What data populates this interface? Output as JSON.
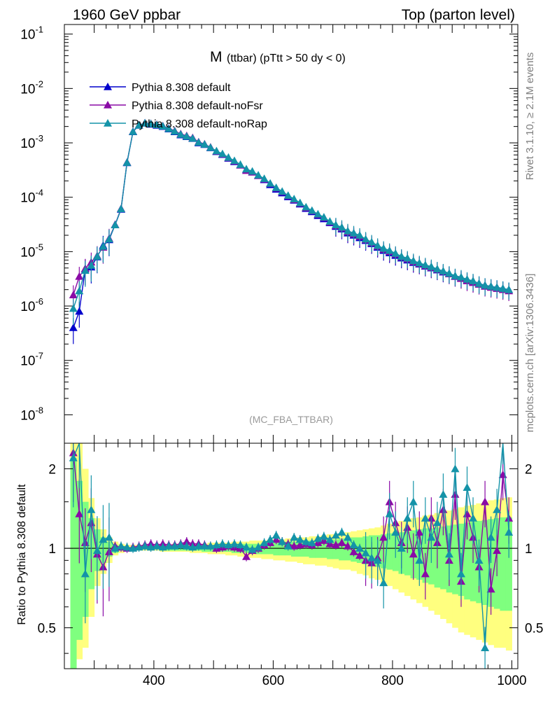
{
  "header": {
    "left": "1960 GeV ppbar",
    "right": "Top (parton level)"
  },
  "title": {
    "main": "M",
    "sub": "(ttbar) (pTtt > 50 dy < 0)"
  },
  "side_labels": {
    "rivet": "Rivet 3.1.10, ≥ 2.1M events",
    "mcplots": "mcplots.cern.ch [arXiv:1306.3436]"
  },
  "watermark": "(MC_FBA_TTBAR)",
  "colors": {
    "default": "#0000cc",
    "noFsr": "#8a0aa6",
    "noRap": "#1493a8",
    "band_yellow": "#ffff7f",
    "band_green": "#7fff7f"
  },
  "chart_data": [
    {
      "type": "line",
      "xlim": [
        250,
        1010
      ],
      "ylim": [
        3e-09,
        0.15
      ],
      "yscale": "log",
      "ytick_labels": [
        "10^-8",
        "10^-7",
        "10^-6",
        "10^-5",
        "10^-4",
        "10^-3",
        "10^-2",
        "10^-1"
      ],
      "legend_position": "top-left",
      "x": [
        265,
        275,
        285,
        295,
        305,
        315,
        325,
        335,
        345,
        355,
        365,
        375,
        385,
        395,
        405,
        415,
        425,
        435,
        445,
        455,
        465,
        475,
        485,
        495,
        505,
        515,
        525,
        535,
        545,
        555,
        565,
        575,
        585,
        595,
        605,
        615,
        625,
        635,
        645,
        655,
        665,
        675,
        685,
        695,
        705,
        715,
        725,
        735,
        745,
        755,
        765,
        775,
        785,
        795,
        805,
        815,
        825,
        835,
        845,
        855,
        865,
        875,
        885,
        895,
        905,
        915,
        925,
        935,
        945,
        955,
        965,
        975,
        985,
        995
      ],
      "series": [
        {
          "name": "Pythia 8.308 default",
          "values": [
            4e-07,
            8e-07,
            4.8e-06,
            5.2e-06,
            8e-06,
            1.3e-05,
            1.65e-05,
            3.1e-05,
            6e-05,
            0.00043,
            0.0016,
            0.0021,
            0.0023,
            0.0022,
            0.0021,
            0.002,
            0.0018,
            0.0016,
            0.0014,
            0.0013,
            0.0012,
            0.001,
            0.00093,
            0.00081,
            0.00069,
            0.00061,
            0.00052,
            0.00045,
            0.00039,
            0.00032,
            0.00029,
            0.00025,
            0.00021,
            0.00017,
            0.00014,
            0.00012,
            0.000102,
            8.8e-05,
            7.5e-05,
            6.2e-05,
            5.4e-05,
            4.6e-05,
            4e-05,
            3.4e-05,
            2.9e-05,
            2.6e-05,
            2.2e-05,
            2e-05,
            1.8e-05,
            1.6e-05,
            1.4e-05,
            1.2e-05,
            1.05e-05,
            9.5e-06,
            8.5e-06,
            7.6e-06,
            7e-06,
            6.3e-06,
            5.9e-06,
            5.4e-06,
            5e-06,
            4.6e-06,
            4.2e-06,
            3.9e-06,
            3.5e-06,
            3.3e-06,
            3e-06,
            2.8e-06,
            2.6e-06,
            2.4e-06,
            2.3e-06,
            2.2e-06,
            2.1e-06,
            2e-06
          ]
        },
        {
          "name": "Pythia 8.308 default-noFsr",
          "values": [
            1.6e-06,
            3.5e-06,
            4.9e-06,
            6.4e-06,
            8.4e-06,
            1.2e-05,
            1.75e-05,
            3.15e-05,
            6.2e-05,
            0.00044,
            0.00162,
            0.00212,
            0.00232,
            0.00226,
            0.00217,
            0.00205,
            0.00186,
            0.00166,
            0.00146,
            0.00135,
            0.00124,
            0.00104,
            0.00095,
            0.00083,
            0.0007,
            0.00062,
            0.00053,
            0.00046,
            0.00039,
            0.00031,
            0.00029,
            0.00025,
            0.000215,
            0.000178,
            0.000147,
            0.000126,
            0.000106,
            9e-05,
            7.7e-05,
            6.4e-05,
            5.6e-05,
            4.8e-05,
            4.2e-05,
            3.5e-05,
            3e-05,
            2.7e-05,
            2.3e-05,
            2.1e-05,
            1.9e-05,
            1.65e-05,
            1.45e-05,
            1.25e-05,
            1.1e-05,
            1e-05,
            9e-06,
            8e-06,
            7.3e-06,
            6.5e-06,
            6e-06,
            5.5e-06,
            5.1e-06,
            4.7e-06,
            4.3e-06,
            3.9e-06,
            3.5e-06,
            3.2e-06,
            2.9e-06,
            2.7e-06,
            2.5e-06,
            2.3e-06,
            2.2e-06,
            2.1e-06,
            2e-06,
            1.9e-06
          ]
        },
        {
          "name": "Pythia 8.308 default-noRap",
          "values": [
            9e-07,
            1.9e-06,
            4.5e-06,
            5.6e-06,
            8.2e-06,
            1.25e-05,
            1.7e-05,
            3.1e-05,
            6.1e-05,
            0.000435,
            0.00161,
            0.00211,
            0.00231,
            0.00225,
            0.00215,
            0.00203,
            0.00183,
            0.00163,
            0.00143,
            0.00132,
            0.00121,
            0.00102,
            0.00094,
            0.00082,
            0.00071,
            0.00063,
            0.00054,
            0.00047,
            0.0004,
            0.00033,
            0.0003,
            0.000255,
            0.00022,
            0.00018,
            0.00015,
            0.000128,
            0.000108,
            9.3e-05,
            7.9e-05,
            6.6e-05,
            5.7e-05,
            4.9e-05,
            4.3e-05,
            3.6e-05,
            3.1e-05,
            2.8e-05,
            2.4e-05,
            2.2e-05,
            2e-05,
            1.7e-05,
            1.5e-05,
            1.3e-05,
            1.15e-05,
            1.05e-05,
            9.3e-06,
            8.2e-06,
            7.6e-06,
            6.8e-06,
            6.2e-06,
            5.7e-06,
            5.3e-06,
            4.8e-06,
            4.4e-06,
            4e-06,
            3.6e-06,
            3.4e-06,
            3.1e-06,
            2.9e-06,
            2.6e-06,
            2.4e-06,
            2.3e-06,
            2.2e-06,
            2.1e-06,
            2e-06
          ]
        }
      ]
    },
    {
      "type": "line",
      "ylabel": "Ratio to Pythia 8.308 default",
      "xlim": [
        250,
        1010
      ],
      "ylim": [
        0.35,
        2.5
      ],
      "yscale": "log",
      "xtick_labels": [
        "400",
        "600",
        "800",
        "1000"
      ],
      "ytick_labels": [
        "0.5",
        "1",
        "2"
      ],
      "x": [
        265,
        275,
        285,
        295,
        305,
        315,
        325,
        335,
        345,
        355,
        365,
        375,
        385,
        395,
        405,
        415,
        425,
        435,
        445,
        455,
        465,
        475,
        485,
        495,
        505,
        515,
        525,
        535,
        545,
        555,
        565,
        575,
        585,
        595,
        605,
        615,
        625,
        635,
        645,
        655,
        665,
        675,
        685,
        695,
        705,
        715,
        725,
        735,
        745,
        755,
        765,
        775,
        785,
        795,
        805,
        815,
        825,
        835,
        845,
        855,
        865,
        875,
        885,
        895,
        905,
        915,
        925,
        935,
        945,
        955,
        965,
        975,
        985,
        995
      ],
      "band_yellow": {
        "lo": [
          0.3,
          0.38,
          0.42,
          0.55,
          0.72,
          0.8,
          0.88,
          0.94,
          0.96,
          0.98,
          0.98,
          0.98,
          0.98,
          0.98,
          0.98,
          0.97,
          0.97,
          0.97,
          0.97,
          0.97,
          0.96,
          0.96,
          0.96,
          0.95,
          0.95,
          0.95,
          0.94,
          0.94,
          0.93,
          0.93,
          0.92,
          0.92,
          0.91,
          0.91,
          0.9,
          0.9,
          0.89,
          0.89,
          0.88,
          0.87,
          0.87,
          0.86,
          0.86,
          0.85,
          0.84,
          0.83,
          0.83,
          0.82,
          0.8,
          0.79,
          0.77,
          0.76,
          0.74,
          0.72,
          0.7,
          0.68,
          0.66,
          0.64,
          0.62,
          0.6,
          0.58,
          0.56,
          0.54,
          0.52,
          0.5,
          0.48,
          0.47,
          0.46,
          0.45,
          0.44,
          0.43,
          0.42,
          0.42,
          0.41
        ],
        "hi": [
          2.5,
          2.5,
          2.0,
          1.55,
          1.3,
          1.18,
          1.1,
          1.06,
          1.04,
          1.03,
          1.03,
          1.03,
          1.03,
          1.03,
          1.03,
          1.03,
          1.03,
          1.04,
          1.04,
          1.04,
          1.04,
          1.04,
          1.04,
          1.05,
          1.05,
          1.05,
          1.05,
          1.06,
          1.06,
          1.06,
          1.07,
          1.07,
          1.07,
          1.08,
          1.08,
          1.08,
          1.09,
          1.09,
          1.1,
          1.1,
          1.11,
          1.11,
          1.12,
          1.13,
          1.13,
          1.14,
          1.15,
          1.16,
          1.17,
          1.18,
          1.19,
          1.2,
          1.22,
          1.24,
          1.25,
          1.27,
          1.28,
          1.3,
          1.31,
          1.33,
          1.34,
          1.36,
          1.38,
          1.39,
          1.41,
          1.43,
          1.45,
          1.46,
          1.48,
          1.5,
          1.52,
          1.53,
          1.55,
          1.56
        ]
      },
      "band_green": {
        "lo": [
          0.35,
          0.45,
          0.55,
          0.7,
          0.82,
          0.88,
          0.93,
          0.96,
          0.98,
          0.99,
          0.99,
          0.99,
          0.99,
          0.99,
          0.99,
          0.98,
          0.98,
          0.98,
          0.98,
          0.98,
          0.98,
          0.98,
          0.97,
          0.97,
          0.97,
          0.97,
          0.97,
          0.96,
          0.96,
          0.96,
          0.96,
          0.95,
          0.95,
          0.95,
          0.94,
          0.94,
          0.94,
          0.93,
          0.93,
          0.93,
          0.92,
          0.92,
          0.92,
          0.91,
          0.91,
          0.9,
          0.9,
          0.89,
          0.88,
          0.87,
          0.86,
          0.85,
          0.84,
          0.83,
          0.82,
          0.8,
          0.79,
          0.77,
          0.76,
          0.74,
          0.73,
          0.71,
          0.7,
          0.68,
          0.67,
          0.66,
          0.64,
          0.63,
          0.62,
          0.61,
          0.6,
          0.59,
          0.58,
          0.58
        ],
        "hi": [
          2.2,
          1.8,
          1.5,
          1.3,
          1.18,
          1.1,
          1.06,
          1.03,
          1.02,
          1.01,
          1.01,
          1.01,
          1.01,
          1.01,
          1.01,
          1.02,
          1.02,
          1.02,
          1.02,
          1.02,
          1.02,
          1.02,
          1.03,
          1.03,
          1.03,
          1.03,
          1.03,
          1.04,
          1.04,
          1.04,
          1.04,
          1.04,
          1.05,
          1.05,
          1.05,
          1.05,
          1.06,
          1.06,
          1.06,
          1.07,
          1.07,
          1.07,
          1.08,
          1.08,
          1.08,
          1.09,
          1.09,
          1.1,
          1.1,
          1.11,
          1.12,
          1.12,
          1.13,
          1.14,
          1.15,
          1.15,
          1.16,
          1.17,
          1.18,
          1.19,
          1.19,
          1.2,
          1.21,
          1.22,
          1.23,
          1.24,
          1.25,
          1.26,
          1.27,
          1.28,
          1.29,
          1.3,
          1.31,
          1.31
        ]
      },
      "series": [
        {
          "name": "Pythia 8.308 default",
          "values": [
            1,
            1,
            1,
            1,
            1,
            1,
            1,
            1,
            1,
            1,
            1,
            1,
            1,
            1,
            1,
            1,
            1,
            1,
            1,
            1,
            1,
            1,
            1,
            1,
            1,
            1,
            1,
            1,
            1,
            1,
            1,
            1,
            1,
            1,
            1,
            1,
            1,
            1,
            1,
            1,
            1,
            1,
            1,
            1,
            1,
            1,
            1,
            1,
            1,
            1,
            1,
            1,
            1,
            1,
            1,
            1,
            1,
            1,
            1,
            1,
            1,
            1,
            1,
            1,
            1,
            1,
            1,
            1,
            1,
            1,
            1,
            1,
            1,
            1
          ]
        },
        {
          "name": "Pythia 8.308 default-noFsr",
          "values": [
            2.3,
            1.35,
            1.05,
            1.25,
            0.95,
            0.85,
            0.97,
            1.02,
            1.01,
            1.0,
            1.01,
            1.02,
            1.03,
            1.04,
            1.03,
            1.04,
            1.03,
            1.03,
            1.04,
            1.06,
            1.04,
            1.04,
            1.03,
            1.02,
            1.0,
            1.01,
            1.02,
            1.01,
            1.0,
            0.93,
            0.98,
            1.0,
            1.03,
            1.05,
            1.08,
            1.06,
            1.04,
            1.02,
            1.03,
            1.04,
            1.03,
            1.05,
            1.07,
            1.04,
            1.03,
            1.05,
            1.02,
            0.97,
            0.94,
            0.9,
            0.88,
            0.92,
            1.1,
            1.5,
            1.25,
            1.05,
            1.2,
            0.95,
            1.15,
            0.8,
            1.3,
            1.05,
            1.4,
            0.9,
            1.6,
            0.75,
            1.35,
            1.1,
            0.85,
            1.5,
            0.7,
            0.98,
            1.9,
            1.3
          ]
        },
        {
          "name": "Pythia 8.308 default-noRap",
          "values": [
            2.2,
            2.6,
            0.8,
            1.4,
            0.98,
            1.08,
            1.1,
            1.0,
            1.02,
            1.01,
            1.0,
            1.01,
            1.02,
            1.01,
            1.02,
            1.01,
            1.02,
            1.02,
            1.03,
            1.02,
            1.01,
            1.02,
            1.02,
            1.02,
            1.03,
            1.04,
            1.03,
            1.04,
            1.03,
            1.01,
            0.99,
            1.01,
            1.05,
            1.08,
            1.12,
            1.06,
            1.02,
            1.1,
            1.08,
            1.06,
            1.05,
            1.09,
            1.11,
            1.08,
            1.12,
            1.15,
            1.1,
            1.03,
            1.0,
            0.96,
            0.92,
            0.9,
            0.74,
            1.35,
            1.15,
            1.0,
            1.3,
            1.5,
            0.9,
            1.3,
            1.1,
            1.25,
            1.6,
            0.95,
            2.0,
            0.8,
            1.7,
            1.3,
            0.9,
            0.42,
            1.1,
            1.4,
            2.6,
            1.15
          ]
        }
      ]
    }
  ]
}
